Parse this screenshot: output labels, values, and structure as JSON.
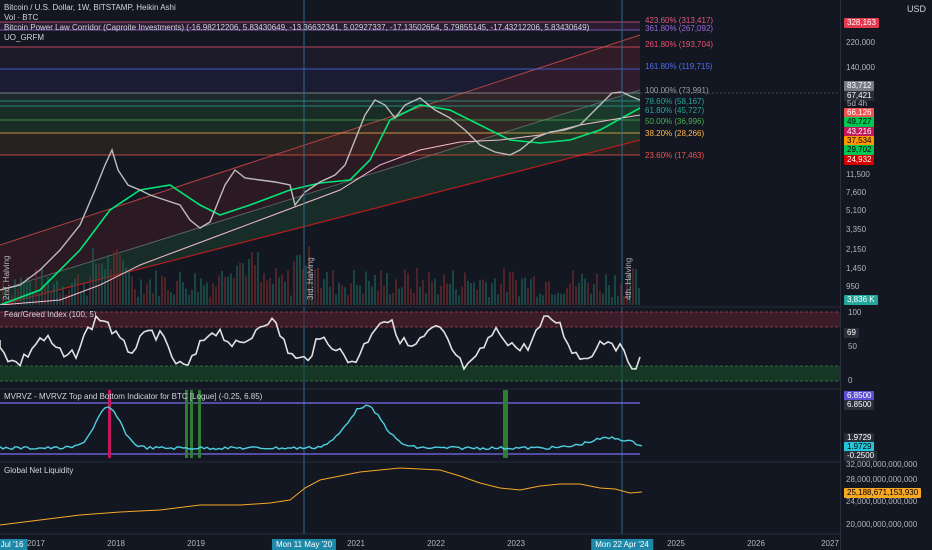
{
  "legends": {
    "main": "Bitcoin / U.S. Dollar, 1W, BITSTAMP, Heikin Ashi",
    "vol": "Vol · BTC",
    "corridor": "Bitcoin Power Law Corridor (Caproite Investments) (-16.98212206, 5.83430649, -13.36632341, 5.02927337, -17.13502654, 5.79855145, -17.43212206, 5.83430649)",
    "uo": "UO_GRFM",
    "fear_greed": "Fear/Greed Index (100, 5)",
    "mvrvz": "MVRVZ - MVRVZ Top and Bottom Indicator for BTC [Logue] (-0.25, 6.85)",
    "liquidity": "Global Net Liquidity"
  },
  "currency": "USD",
  "fib_levels": [
    {
      "label": "423.60% (313,417)",
      "color": "#e05a7a"
    },
    {
      "label": "361.80% (267,092)",
      "color": "#9c6ade"
    },
    {
      "label": "261.80% (193,704)",
      "color": "#f0506e"
    },
    {
      "label": "161.80% (119,715)",
      "color": "#4f6df5"
    },
    {
      "label": "100.00% (73,991)",
      "color": "#9aa0a6"
    },
    {
      "label": "78.60% (58,167)",
      "color": "#26a69a"
    },
    {
      "label": "61.80% (45,727)",
      "color": "#26a69a"
    },
    {
      "label": "50.00% (36,996)",
      "color": "#4caf50"
    },
    {
      "label": "38.20% (28,266)",
      "color": "#ffb74d"
    },
    {
      "label": "23.60% (17,463)",
      "color": "#ef5350"
    }
  ],
  "price_axis": [
    "220,000",
    "140,000",
    "11,500",
    "7,600",
    "5,100",
    "3,350",
    "2,150",
    "1,450",
    "950"
  ],
  "price_tags": [
    {
      "text": "328,163",
      "bg": "#e53950"
    },
    {
      "text": "83,712",
      "bg": "#787b86"
    },
    {
      "text": "67,421",
      "bg": "#2a2e39"
    },
    {
      "text": "5d 4h",
      "bg": "#2a2e39"
    },
    {
      "text": "66,126",
      "bg": "#ef5350"
    },
    {
      "text": "49,727",
      "bg": "#00c853"
    },
    {
      "text": "43,216",
      "bg": "#c2185b"
    },
    {
      "text": "37,534",
      "bg": "#ff9800"
    },
    {
      "text": "29,702",
      "bg": "#00c853"
    },
    {
      "text": "24,932",
      "bg": "#d50000"
    },
    {
      "text": "3,836 K",
      "bg": "#26a69a"
    }
  ],
  "fg_axis": [
    "100",
    "50",
    "0"
  ],
  "fg_value": "69",
  "mvrvz_tags": [
    {
      "text": "6.8500",
      "bg": "#5c4fd6"
    },
    {
      "text": "6.8500",
      "bg": "#2a2e39"
    },
    {
      "text": "1.9729",
      "bg": "#2a2e39"
    },
    {
      "text": "1.9729",
      "bg": "#26c6da"
    },
    {
      "text": "-0.2500",
      "bg": "#2a2e39"
    }
  ],
  "liq_axis": [
    "32,000,000,000,000",
    "28,000,000,000,000",
    "24,000,000,000,000",
    "20,000,000,000,000"
  ],
  "liq_value": "25,188,671,153,930",
  "x_axis": [
    "2017",
    "2018",
    "2019",
    "2021",
    "2022",
    "2023",
    "2025",
    "2026",
    "2027"
  ],
  "x_flags": [
    "Jul '16",
    "Mon 11 May '20",
    "Mon 22 Apr '24"
  ],
  "halvings": [
    "2nd. Halving",
    "3rd. Halving",
    "4th. Halving"
  ]
}
